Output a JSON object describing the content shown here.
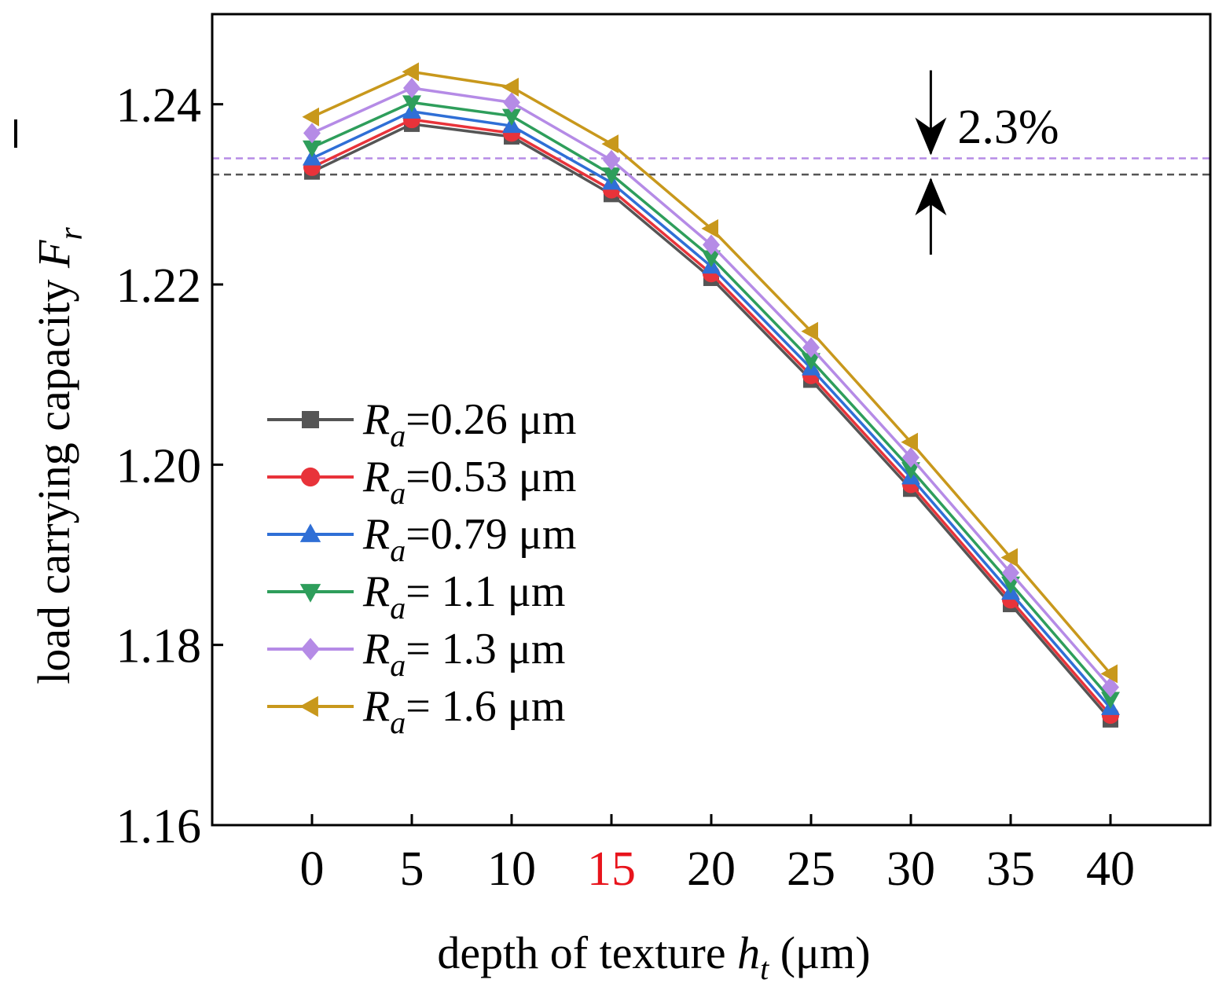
{
  "chart_data": {
    "type": "line",
    "xlabel": {
      "text": "depth of texture ",
      "var": "h",
      "sub": "t",
      "unit": " (μm)"
    },
    "ylabel": {
      "text": "load carrying capacity ",
      "var": "F",
      "sub": "r"
    },
    "x": [
      0,
      5,
      10,
      15,
      20,
      25,
      30,
      35,
      40
    ],
    "x_tick_labels": [
      "0",
      "5",
      "10",
      "15",
      "20",
      "25",
      "30",
      "35",
      "40"
    ],
    "highlight_tick": {
      "label": "15",
      "color": "#e8141c"
    },
    "xlim": [
      -5,
      45
    ],
    "ylim": [
      1.16,
      1.25
    ],
    "y_ticks": [
      1.16,
      1.18,
      1.2,
      1.22,
      1.24
    ],
    "y_tick_labels": [
      "1.16",
      "1.18",
      "1.20",
      "1.22",
      "1.24"
    ],
    "grid": false,
    "legend_position": "left-middle",
    "series": [
      {
        "name": "=0.26 μm",
        "var": "R",
        "sub": "a",
        "color": "#555555",
        "marker": "square",
        "values": [
          1.2325,
          1.2378,
          1.2364,
          1.23,
          1.2207,
          1.2094,
          1.1973,
          1.1845,
          1.1717
        ]
      },
      {
        "name": "=0.53 μm",
        "var": "R",
        "sub": "a",
        "color": "#e8333a",
        "marker": "circle",
        "values": [
          1.233,
          1.2383,
          1.2368,
          1.2305,
          1.2212,
          1.2099,
          1.1978,
          1.185,
          1.1722
        ]
      },
      {
        "name": "=0.79 μm",
        "var": "R",
        "sub": "a",
        "color": "#2f6fd6",
        "marker": "triangle-up",
        "values": [
          1.234,
          1.2392,
          1.2376,
          1.2313,
          1.222,
          1.2107,
          1.1986,
          1.1858,
          1.173
        ]
      },
      {
        "name": "= 1.1  μm",
        "var": "R",
        "sub": "a",
        "color": "#2e9e5b",
        "marker": "triangle-down",
        "values": [
          1.2352,
          1.2402,
          1.2387,
          1.2322,
          1.223,
          1.2116,
          1.1995,
          1.1868,
          1.174
        ]
      },
      {
        "name": "= 1.3  μm",
        "var": "R",
        "sub": "a",
        "color": "#b58be6",
        "marker": "diamond",
        "values": [
          1.2368,
          1.2418,
          1.2402,
          1.2338,
          1.2244,
          1.213,
          1.2008,
          1.188,
          1.1753
        ]
      },
      {
        "name": "= 1.6  μm",
        "var": "R",
        "sub": "a",
        "color": "#c8981c",
        "marker": "triangle-left",
        "values": [
          1.2386,
          1.2436,
          1.2419,
          1.2356,
          1.2262,
          1.2148,
          1.2025,
          1.1897,
          1.1768
        ]
      }
    ],
    "reference_lines": [
      {
        "y": 1.234,
        "color": "#b58be6",
        "style": "dashed"
      },
      {
        "y": 1.2322,
        "color": "#555555",
        "style": "dashed"
      }
    ],
    "annotation": {
      "text": "2.3%",
      "x": 31,
      "y_top": 1.234,
      "y_bottom": 1.2322
    }
  }
}
